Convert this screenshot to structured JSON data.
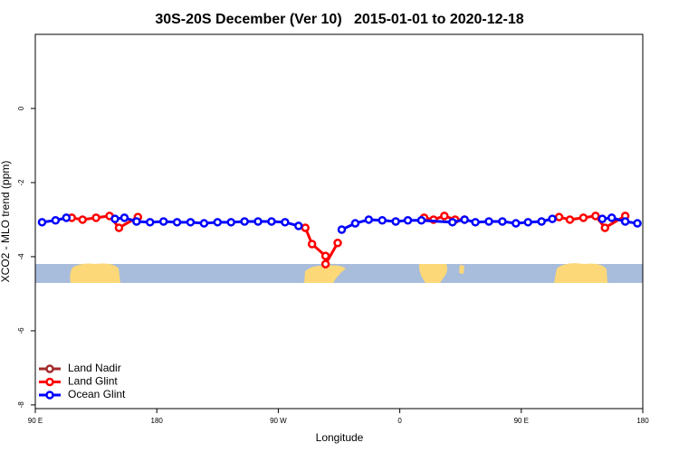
{
  "chart_data": {
    "type": "line",
    "title": "30S-20S December (Ver 10)   2015-01-01 to 2020-12-18",
    "x_label": "Longitude",
    "y_label": "XCO2 - MLO trend (ppm)",
    "xlim": [
      90,
      540
    ],
    "ylim": [
      -8.1,
      2
    ],
    "xticks": [
      {
        "value": 90,
        "label": "90 E"
      },
      180,
      {
        "value": 270,
        "label": "90 W"
      },
      {
        "value": 360,
        "label": "0"
      },
      {
        "value": 450,
        "label": "90 E"
      },
      {
        "value": 540,
        "label": "180"
      }
    ],
    "yticks": [
      0,
      -2,
      -4,
      -6,
      -8
    ],
    "legend": "bottom-left",
    "series": [
      {
        "name": "Land Nadir",
        "color": "#a52a2a",
        "x": [],
        "values": []
      },
      {
        "name": "Land Glint",
        "color": "#ff0000",
        "x": [
          117,
          125,
          135,
          145,
          152,
          166,
          null,
          290,
          295,
          305,
          305,
          314,
          null,
          378,
          385,
          393,
          401,
          408,
          null,
          478,
          486,
          496,
          505,
          512,
          527
        ],
        "values": [
          -2.95,
          -3.0,
          -2.95,
          -2.9,
          -3.22,
          -2.93,
          null,
          -3.22,
          -3.66,
          -3.98,
          -4.2,
          -3.63,
          null,
          -2.95,
          -3.0,
          -2.9,
          -3.0,
          -3.0,
          null,
          -2.93,
          -3.0,
          -2.95,
          -2.9,
          -3.22,
          -2.9
        ]
      },
      {
        "name": "Ocean Glint",
        "color": "#0000ff",
        "x": [
          95,
          105,
          113,
          null,
          149,
          156,
          165,
          175,
          185,
          195,
          205,
          215,
          225,
          235,
          245,
          255,
          265,
          275,
          285,
          null,
          317,
          327,
          337,
          347,
          357,
          366,
          376,
          399,
          408,
          416,
          426,
          436,
          446,
          455,
          465,
          473,
          null,
          510,
          517,
          527,
          536
        ],
        "values": [
          -3.07,
          -3.02,
          -2.95,
          null,
          -2.98,
          -2.95,
          -3.05,
          -3.07,
          -3.05,
          -3.07,
          -3.07,
          -3.1,
          -3.07,
          -3.07,
          -3.05,
          -3.05,
          -3.05,
          -3.07,
          -3.17,
          null,
          -3.27,
          -3.1,
          -3.0,
          -3.02,
          -3.05,
          -3.02,
          -3.02,
          -3.07,
          -3.0,
          -3.07,
          -3.05,
          -3.05,
          -3.1,
          -3.07,
          -3.05,
          -2.98,
          null,
          -2.98,
          -2.95,
          -3.05,
          -3.1
        ]
      }
    ]
  }
}
